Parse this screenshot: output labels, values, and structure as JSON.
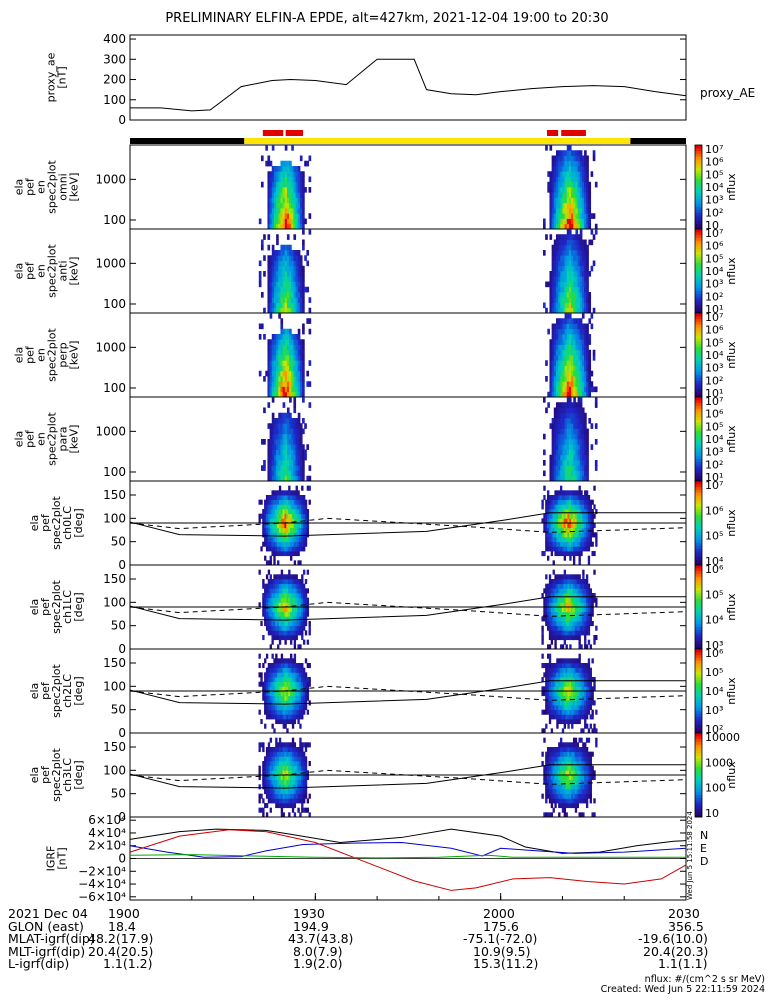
{
  "title": "PRELIMINARY ELFIN-A EPDE, alt=427km, 2021-12-04 19:00 to 20:30",
  "colors": {
    "ae_line": "#000000",
    "bar_black": "#000000",
    "bar_yellow": "#ffe600",
    "bar_red": "#e00000",
    "grf_N": "#000000",
    "grf_E": "#0000cc",
    "grf_D": "#cc0000",
    "grf_green": "#00aa00"
  },
  "chart_data": [
    {
      "type": "line",
      "name": "proxy_ae",
      "ylabel_lines": [
        "proxy_ae",
        "[nT]"
      ],
      "ylim": [
        0,
        420
      ],
      "yticks": [
        "0",
        "100",
        "200",
        "300",
        "400"
      ],
      "series_label": "proxy_AE",
      "x_minutes": [
        0,
        5,
        10,
        13,
        18,
        23,
        26,
        30,
        35,
        40,
        46,
        48,
        52,
        56,
        60,
        65,
        70,
        75,
        80,
        85,
        90
      ],
      "y": [
        60,
        60,
        45,
        50,
        165,
        195,
        200,
        195,
        175,
        300,
        300,
        150,
        130,
        125,
        140,
        155,
        165,
        170,
        165,
        140,
        120
      ]
    },
    {
      "type": "heatmap",
      "name": "spec2plot-omni",
      "ylabel_lines": [
        "ela",
        "pef",
        "en",
        "spec2plot",
        "omni",
        "[keV]"
      ],
      "yscale": "log",
      "ylim": [
        60,
        7000
      ],
      "yticks": [
        "100",
        "1000"
      ],
      "colorbar": {
        "label": "nflux",
        "ticks": [
          "10",
          "10²",
          "10³",
          "10⁴",
          "10⁵",
          "10⁶",
          "10⁷"
        ]
      }
    },
    {
      "type": "heatmap",
      "name": "spec2plot-anti",
      "ylabel_lines": [
        "ela",
        "pef",
        "en",
        "spec2plot",
        "anti",
        "[keV]"
      ],
      "yscale": "log",
      "ylim": [
        60,
        7000
      ],
      "yticks": [
        "100",
        "1000"
      ],
      "colorbar": {
        "label": "nflux",
        "ticks": [
          "10¹",
          "10²",
          "10³",
          "10⁴",
          "10⁵",
          "10⁶",
          "10⁷"
        ]
      }
    },
    {
      "type": "heatmap",
      "name": "spec2plot-perp",
      "ylabel_lines": [
        "ela",
        "pef",
        "en",
        "spec2plot",
        "perp",
        "[keV]"
      ],
      "yscale": "log",
      "ylim": [
        60,
        7000
      ],
      "yticks": [
        "100",
        "1000"
      ],
      "colorbar": {
        "label": "nflux",
        "ticks": [
          "10¹",
          "10²",
          "10³",
          "10⁴",
          "10⁵",
          "10⁶",
          "10⁷"
        ]
      }
    },
    {
      "type": "heatmap",
      "name": "spec2plot-para",
      "ylabel_lines": [
        "ela",
        "pef",
        "en",
        "spec2plot",
        "para",
        "[keV]"
      ],
      "yscale": "log",
      "ylim": [
        60,
        7000
      ],
      "yticks": [
        "100",
        "1000"
      ],
      "colorbar": {
        "label": "nflux",
        "ticks": [
          "10¹",
          "10²",
          "10³",
          "10⁴",
          "10⁵",
          "10⁶",
          "10⁷"
        ]
      }
    },
    {
      "type": "heatmap",
      "name": "spec2plot-ch0LC",
      "ylabel_lines": [
        "ela",
        "pef",
        "spec2plot",
        "ch0LC",
        "[deg]"
      ],
      "yscale": "linear",
      "ylim": [
        0,
        180
      ],
      "yticks": [
        "0",
        "50",
        "100",
        "150"
      ],
      "colorbar": {
        "label": "nflux",
        "ticks": [
          "10⁴",
          "10⁵",
          "10⁶",
          "10⁷"
        ]
      }
    },
    {
      "type": "heatmap",
      "name": "spec2plot-ch1LC",
      "ylabel_lines": [
        "ela",
        "pef",
        "spec2plot",
        "ch1LC",
        "[deg]"
      ],
      "yscale": "linear",
      "ylim": [
        0,
        180
      ],
      "yticks": [
        "0",
        "50",
        "100",
        "150"
      ],
      "colorbar": {
        "label": "nflux",
        "ticks": [
          "10³",
          "10⁴",
          "10⁵",
          "10⁶"
        ]
      }
    },
    {
      "type": "heatmap",
      "name": "spec2plot-ch2LC",
      "ylabel_lines": [
        "ela",
        "pef",
        "spec2plot",
        "ch2LC",
        "[deg]"
      ],
      "yscale": "linear",
      "ylim": [
        0,
        180
      ],
      "yticks": [
        "0",
        "50",
        "100",
        "150"
      ],
      "colorbar": {
        "label": "nflux",
        "ticks": [
          "10²",
          "10³",
          "10⁴",
          "10⁵",
          "10⁶"
        ]
      }
    },
    {
      "type": "heatmap",
      "name": "spec2plot-ch3LC",
      "ylabel_lines": [
        "ela",
        "pef",
        "spec2plot",
        "ch3LC",
        "[deg]"
      ],
      "yscale": "linear",
      "ylim": [
        0,
        180
      ],
      "yticks": [
        "0",
        "50",
        "100",
        "150"
      ],
      "colorbar": {
        "label": "nflux",
        "ticks": [
          "10",
          "100",
          "1000",
          "10000"
        ]
      }
    },
    {
      "type": "line",
      "name": "IGRF",
      "ylabel_lines": [
        "IGRF",
        "[nT]"
      ],
      "ylim": [
        -65000,
        65000
      ],
      "yticks": [
        "−6×10⁴",
        "−4×10⁴",
        "−2×10⁴",
        "0",
        "2×10⁴",
        "4×10⁴",
        "6×10⁴"
      ],
      "legend": [
        "N",
        "E",
        "D"
      ],
      "series": [
        {
          "name": "N",
          "color_key": "grf_N",
          "x": [
            0,
            8,
            14,
            22,
            26,
            34,
            44,
            52,
            60,
            64,
            70,
            76,
            82,
            88,
            90
          ],
          "y": [
            30000,
            42000,
            46000,
            44000,
            38000,
            25000,
            33000,
            46000,
            35000,
            18000,
            8000,
            10000,
            20000,
            27000,
            28000
          ]
        },
        {
          "name": "E",
          "color_key": "grf_E",
          "x": [
            0,
            6,
            12,
            18,
            22,
            28,
            36,
            44,
            52,
            57,
            60,
            66,
            72,
            80,
            90
          ],
          "y": [
            20000,
            10000,
            2000,
            3000,
            12000,
            22000,
            24000,
            25000,
            16000,
            4000,
            16000,
            12000,
            8000,
            10000,
            16000
          ]
        },
        {
          "name": "D",
          "color_key": "grf_D",
          "x": [
            0,
            8,
            16,
            22,
            30,
            38,
            46,
            52,
            56,
            62,
            68,
            74,
            80,
            86,
            90
          ],
          "y": [
            10000,
            35000,
            45000,
            42000,
            25000,
            -5000,
            -35000,
            -50000,
            -46000,
            -32000,
            -30000,
            -36000,
            -40000,
            -32000,
            -10000
          ]
        },
        {
          "name": "green",
          "color_key": "grf_green",
          "x": [
            0,
            10,
            20,
            30,
            40,
            50,
            58,
            62,
            70,
            80,
            90
          ],
          "y": [
            5000,
            6000,
            4000,
            2000,
            1000,
            2000,
            5000,
            2000,
            2000,
            2000,
            2000
          ]
        }
      ]
    }
  ],
  "time_axis": {
    "labels": [
      "1900",
      "1930",
      "2000",
      "2030"
    ],
    "label_minutes": [
      0,
      30,
      60,
      90
    ]
  },
  "ephemeris": {
    "rows": [
      {
        "label": "2021 Dec 04",
        "values": [
          "1900",
          "1930",
          "2000",
          "2030"
        ]
      },
      {
        "label": "GLON (east)",
        "values": [
          "18.4",
          "194.9",
          "175.6",
          "356.5"
        ]
      },
      {
        "label": "MLAT-igrf(dip)",
        "values": [
          "48.2(17.9)",
          "43.7(43.8)",
          "-75.1(-72.0)",
          "-19.6(10.0)"
        ]
      },
      {
        "label": "MLT-igrf(dip)",
        "values": [
          "20.4(20.5)",
          "8.0(7.9)",
          "10.9(9.5)",
          "20.4(20.3)"
        ]
      },
      {
        "label": "L-igrf(dip)",
        "values": [
          "1.1(1.2)",
          "1.9(2.0)",
          "15.3(11.2)",
          "1.1(1.1)"
        ]
      }
    ]
  },
  "footer": {
    "units": "nflux: #/(cm^2 s sr MeV)",
    "created": "Created: Wed Jun  5 22:11:59 2024",
    "side_stamp": "Wed Jun  5 15:11:58 2024"
  }
}
